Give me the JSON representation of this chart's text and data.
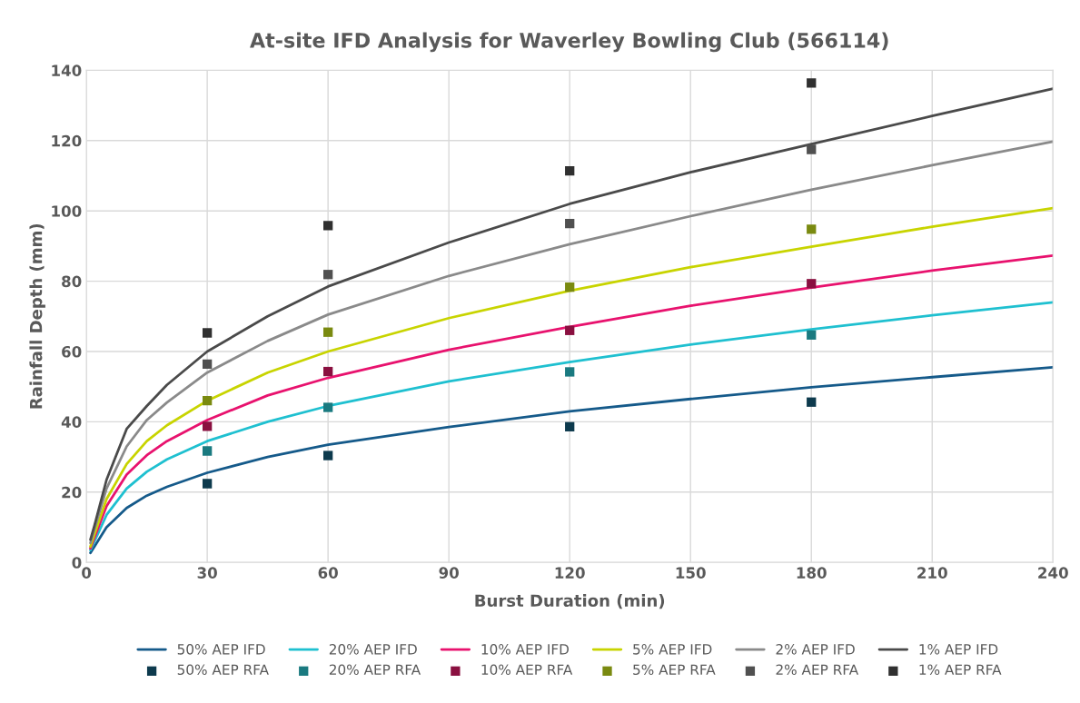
{
  "chart_data": {
    "type": "line",
    "title": "At-site IFD Analysis for Waverley Bowling Club (566114)",
    "xlabel": "Burst Duration (min)",
    "ylabel": "Rainfall Depth (mm)",
    "xlim": [
      0,
      240
    ],
    "xticks": [
      0,
      30,
      60,
      90,
      120,
      150,
      180,
      210,
      240
    ],
    "ylim": [
      0,
      140
    ],
    "yticks": [
      0,
      20,
      40,
      60,
      80,
      100,
      120,
      140
    ],
    "grid": true,
    "legend": "bottom",
    "series": [
      {
        "name": "50% AEP IFD",
        "marker": "none",
        "color": "#155a8a",
        "x": [
          1,
          2,
          5,
          10,
          15,
          20,
          30,
          45,
          60,
          90,
          120,
          150,
          180,
          210,
          240
        ],
        "values": [
          2.7,
          4.5,
          10,
          15.5,
          19,
          21.5,
          25.5,
          30,
          33.5,
          38.5,
          43,
          46.5,
          49.8,
          52.7,
          55.5
        ]
      },
      {
        "name": "50% AEP RFA",
        "type": "scatter",
        "marker": "square",
        "color": "#0d3a4d",
        "x": [
          30,
          60,
          120,
          180
        ],
        "values": [
          22.4,
          30.4,
          38.6,
          45.6
        ]
      },
      {
        "name": "20% AEP IFD",
        "marker": "none",
        "color": "#1fc0d0",
        "x": [
          1,
          2,
          5,
          10,
          15,
          20,
          30,
          45,
          60,
          90,
          120,
          150,
          180,
          210,
          240
        ],
        "values": [
          3.5,
          6,
          13.5,
          21,
          25.8,
          29.3,
          34.5,
          40,
          44.5,
          51.5,
          57,
          62,
          66.3,
          70.3,
          74
        ]
      },
      {
        "name": "20% AEP RFA",
        "type": "scatter",
        "marker": "square",
        "color": "#1a7a80",
        "x": [
          30,
          60,
          120,
          180
        ],
        "values": [
          31.7,
          44.1,
          54.2,
          64.7
        ]
      },
      {
        "name": "10% AEP IFD",
        "marker": "none",
        "color": "#e8126e",
        "x": [
          1,
          2,
          5,
          10,
          15,
          20,
          30,
          45,
          60,
          90,
          120,
          150,
          180,
          210,
          240
        ],
        "values": [
          4,
          7,
          16,
          25,
          30.5,
          34.5,
          40.5,
          47.5,
          52.5,
          60.5,
          67,
          73,
          78.2,
          83,
          87.3
        ]
      },
      {
        "name": "10% AEP RFA",
        "type": "scatter",
        "marker": "square",
        "color": "#8a1040",
        "x": [
          30,
          60,
          120,
          180
        ],
        "values": [
          38.7,
          54.3,
          66,
          79.3
        ]
      },
      {
        "name": "5% AEP IFD",
        "marker": "none",
        "color": "#c8d400",
        "x": [
          1,
          2,
          5,
          10,
          15,
          20,
          30,
          45,
          60,
          90,
          120,
          150,
          180,
          210,
          240
        ],
        "values": [
          4.5,
          8,
          18,
          28,
          34.5,
          39,
          46,
          54,
          60,
          69.5,
          77.3,
          84,
          89.8,
          95.5,
          100.8
        ]
      },
      {
        "name": "5% AEP RFA",
        "type": "scatter",
        "marker": "square",
        "color": "#7a8a10",
        "x": [
          30,
          60,
          120,
          180
        ],
        "values": [
          46,
          65.5,
          78.3,
          94.8
        ]
      },
      {
        "name": "2% AEP IFD",
        "marker": "none",
        "color": "#8a8a8a",
        "x": [
          1,
          2,
          5,
          10,
          15,
          20,
          30,
          45,
          60,
          90,
          120,
          150,
          180,
          210,
          240
        ],
        "values": [
          5.5,
          9.5,
          21,
          33,
          40.5,
          45.5,
          54,
          63,
          70.5,
          81.5,
          90.5,
          98.5,
          106,
          113,
          119.7
        ]
      },
      {
        "name": "2% AEP RFA",
        "type": "scatter",
        "marker": "square",
        "color": "#505050",
        "x": [
          30,
          60,
          120,
          180
        ],
        "values": [
          56.4,
          81.9,
          96.4,
          117.5
        ]
      },
      {
        "name": "1% AEP IFD",
        "marker": "none",
        "color": "#4a4a4a",
        "x": [
          1,
          2,
          5,
          10,
          15,
          20,
          30,
          45,
          60,
          90,
          120,
          150,
          180,
          210,
          240
        ],
        "values": [
          6.5,
          10.5,
          23.5,
          38,
          44.5,
          50.5,
          60,
          70,
          78.5,
          91,
          102,
          111,
          119,
          127,
          134.8
        ]
      },
      {
        "name": "1% AEP RFA",
        "type": "scatter",
        "marker": "square",
        "color": "#303030",
        "x": [
          30,
          60,
          120,
          180
        ],
        "values": [
          65.3,
          95.8,
          111.4,
          136.4
        ]
      }
    ]
  }
}
